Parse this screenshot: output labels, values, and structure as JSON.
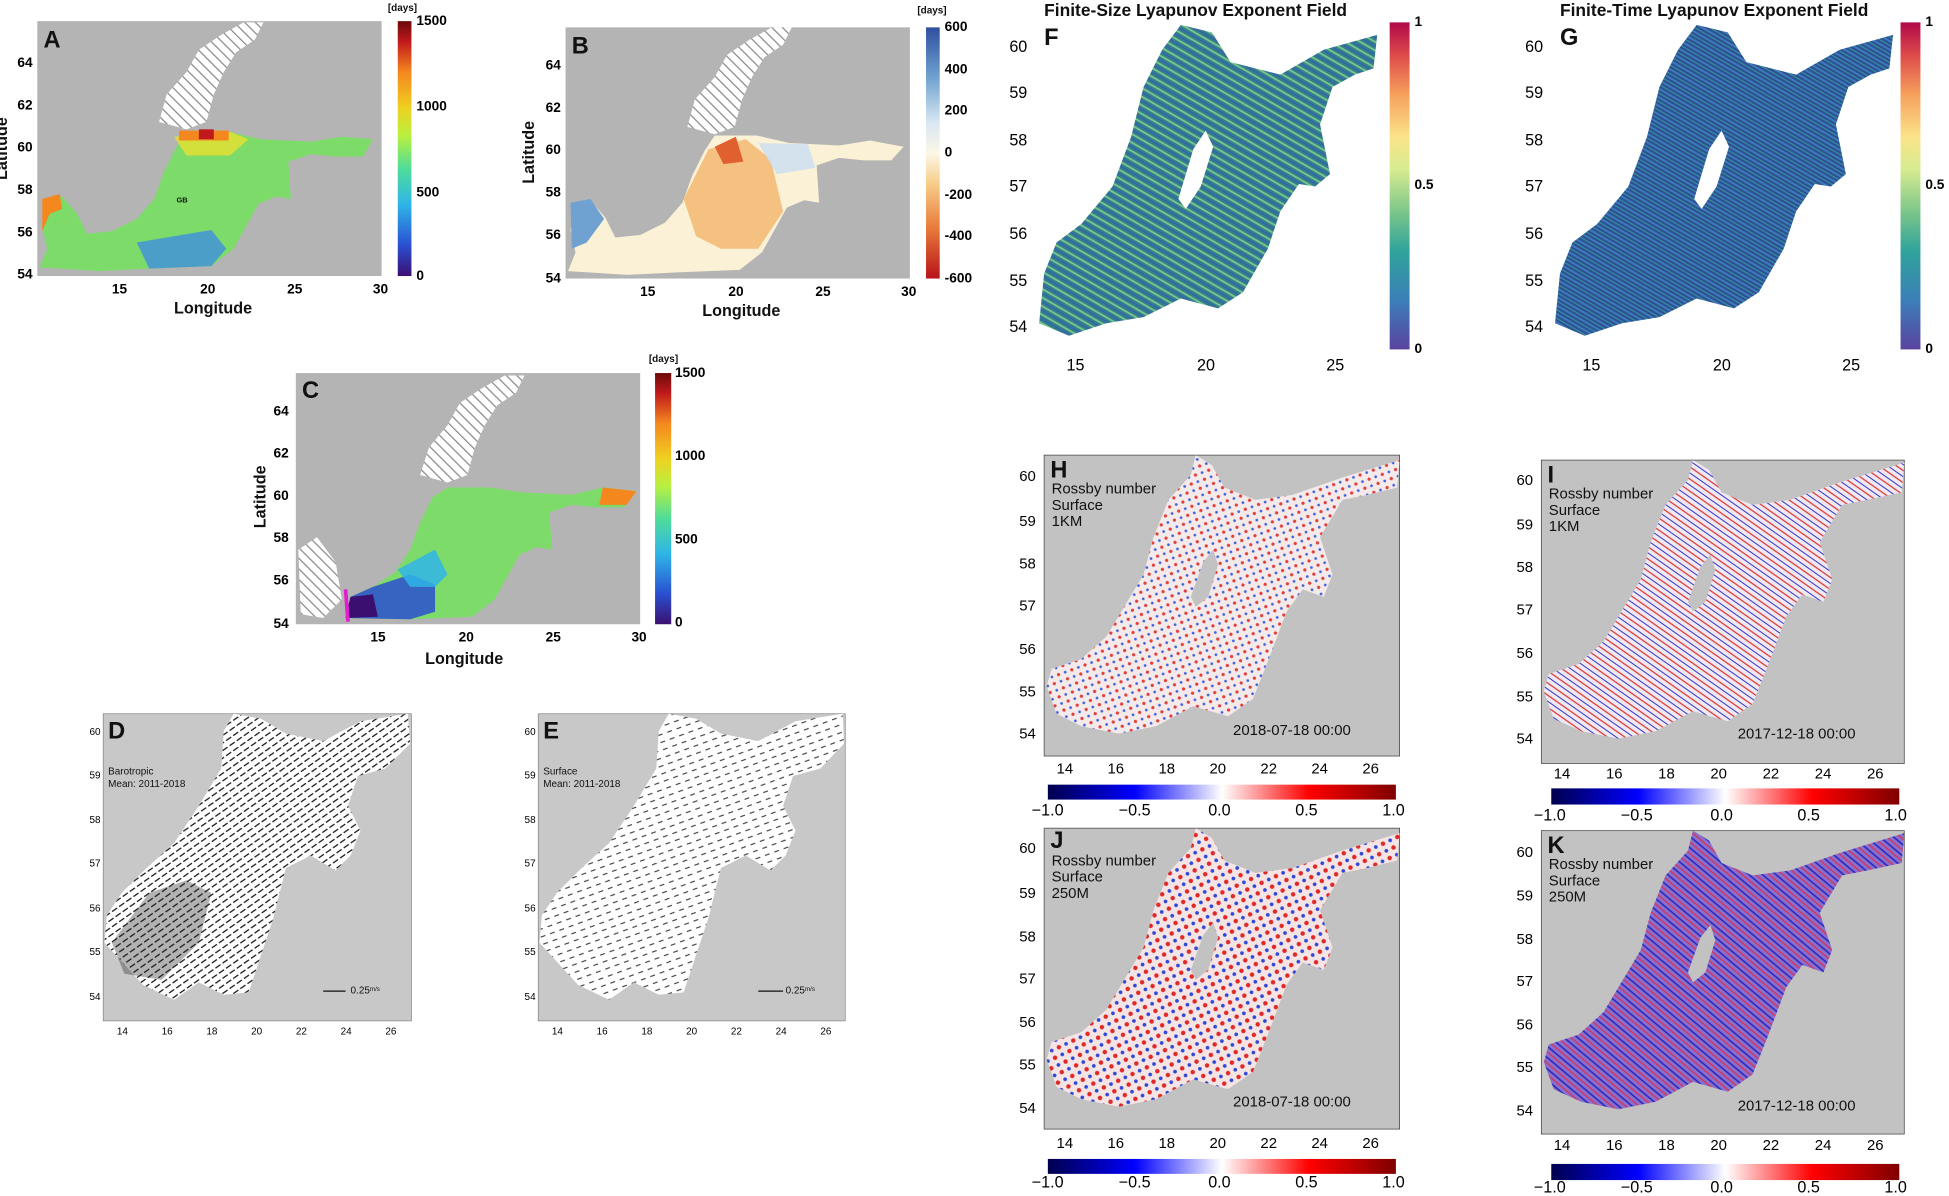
{
  "chart_data": [
    {
      "panel": "A",
      "type": "heatmap",
      "xlabel": "Longitude",
      "ylabel": "Latitude",
      "xticks": [
        "15",
        "20",
        "25",
        "30"
      ],
      "yticks": [
        "54",
        "56",
        "58",
        "60",
        "62",
        "64"
      ],
      "xlim": [
        10,
        30
      ],
      "ylim": [
        54,
        66
      ],
      "annotation": "GB",
      "colorbar": {
        "unit": "[days]",
        "ticks": [
          "1500",
          "1000",
          "500",
          "0"
        ],
        "range": [
          0,
          1500
        ]
      }
    },
    {
      "panel": "B",
      "type": "heatmap",
      "xlabel": "Longitude",
      "ylabel": "Latitude",
      "xticks": [
        "15",
        "20",
        "25",
        "30"
      ],
      "yticks": [
        "54",
        "56",
        "58",
        "60",
        "62",
        "64"
      ],
      "xlim": [
        10,
        30
      ],
      "ylim": [
        54,
        66
      ],
      "colorbar": {
        "unit": "[days]",
        "ticks": [
          "600",
          "400",
          "200",
          "0",
          "-200",
          "-400",
          "-600"
        ],
        "range": [
          -600,
          600
        ]
      }
    },
    {
      "panel": "C",
      "type": "heatmap",
      "xlabel": "Longitude",
      "ylabel": "Latitude",
      "xticks": [
        "15",
        "20",
        "25",
        "30"
      ],
      "yticks": [
        "54",
        "56",
        "58",
        "60",
        "62",
        "64"
      ],
      "xlim": [
        10,
        30
      ],
      "ylim": [
        54,
        66
      ],
      "colorbar": {
        "unit": "[days]",
        "ticks": [
          "1500",
          "1000",
          "500",
          "0"
        ],
        "range": [
          0,
          1500
        ]
      }
    },
    {
      "panel": "D",
      "type": "quiver",
      "xticks": [
        "14",
        "16",
        "18",
        "20",
        "22",
        "24",
        "26"
      ],
      "yticks": [
        "54",
        "55",
        "56",
        "57",
        "58",
        "59",
        "60"
      ],
      "xlim": [
        13,
        27
      ],
      "ylim": [
        53.5,
        60.5
      ],
      "text": [
        "Barotropic",
        "Mean: 2011-2018"
      ],
      "scale_label": "0.25",
      "scale_unit": "m/s"
    },
    {
      "panel": "E",
      "type": "quiver",
      "xticks": [
        "14",
        "16",
        "18",
        "20",
        "22",
        "24",
        "26"
      ],
      "yticks": [
        "54",
        "55",
        "56",
        "57",
        "58",
        "59",
        "60"
      ],
      "xlim": [
        13,
        27
      ],
      "ylim": [
        53.5,
        60.5
      ],
      "text": [
        "Surface",
        "Mean: 2011-2018"
      ],
      "scale_label": "0.25",
      "scale_unit": "m/s"
    },
    {
      "panel": "F",
      "type": "heatmap",
      "title": "Finite-Size Lyapunov Exponent Field",
      "xticks": [
        "15",
        "20",
        "25"
      ],
      "yticks": [
        "54",
        "55",
        "56",
        "57",
        "58",
        "59",
        "60"
      ],
      "xlim": [
        13.5,
        26.5
      ],
      "ylim": [
        53.6,
        60.6
      ],
      "colorbar": {
        "ticks": [
          "1",
          "0.5",
          "0"
        ],
        "range": [
          0,
          1
        ]
      }
    },
    {
      "panel": "G",
      "type": "heatmap",
      "title": "Finite-Time Lyapunov Exponent Field",
      "xticks": [
        "15",
        "20",
        "25"
      ],
      "yticks": [
        "54",
        "55",
        "56",
        "57",
        "58",
        "59",
        "60"
      ],
      "xlim": [
        13.5,
        26.5
      ],
      "ylim": [
        53.6,
        60.6
      ],
      "colorbar": {
        "ticks": [
          "1",
          "0.5",
          "0"
        ],
        "range": [
          0,
          1
        ]
      }
    },
    {
      "panel": "H",
      "type": "heatmap",
      "text": [
        "Rossby number",
        "Surface",
        "1KM"
      ],
      "date": "2018-07-18 00:00",
      "xticks": [
        "14",
        "16",
        "18",
        "20",
        "22",
        "24",
        "26"
      ],
      "yticks": [
        "54",
        "55",
        "56",
        "57",
        "58",
        "59",
        "60"
      ],
      "xlim": [
        13,
        27
      ],
      "ylim": [
        53.6,
        60.4
      ],
      "colorbar": {
        "ticks": [
          "−1.0",
          "−0.5",
          "0.0",
          "0.5",
          "1.0"
        ],
        "range": [
          -1,
          1
        ]
      }
    },
    {
      "panel": "I",
      "type": "heatmap",
      "text": [
        "Rossby number",
        "Surface",
        "1KM"
      ],
      "date": "2017-12-18 00:00",
      "xticks": [
        "14",
        "16",
        "18",
        "20",
        "22",
        "24",
        "26"
      ],
      "yticks": [
        "54",
        "55",
        "56",
        "57",
        "58",
        "59",
        "60"
      ],
      "xlim": [
        13,
        27
      ],
      "ylim": [
        53.6,
        60.4
      ],
      "colorbar": {
        "ticks": [
          "−1.0",
          "−0.5",
          "0.0",
          "0.5",
          "1.0"
        ],
        "range": [
          -1,
          1
        ]
      }
    },
    {
      "panel": "J",
      "type": "heatmap",
      "text": [
        "Rossby number",
        "Surface",
        "250M"
      ],
      "date": "2018-07-18 00:00",
      "xticks": [
        "14",
        "16",
        "18",
        "20",
        "22",
        "24",
        "26"
      ],
      "yticks": [
        "54",
        "55",
        "56",
        "57",
        "58",
        "59",
        "60"
      ],
      "xlim": [
        13,
        27
      ],
      "ylim": [
        53.6,
        60.4
      ],
      "colorbar": {
        "ticks": [
          "−1.0",
          "−0.5",
          "0.0",
          "0.5",
          "1.0"
        ],
        "range": [
          -1,
          1
        ]
      }
    },
    {
      "panel": "K",
      "type": "heatmap",
      "text": [
        "Rossby number",
        "Surface",
        "250M"
      ],
      "date": "2017-12-18 00:00",
      "xticks": [
        "14",
        "16",
        "18",
        "20",
        "22",
        "24",
        "26"
      ],
      "yticks": [
        "54",
        "55",
        "56",
        "57",
        "58",
        "59",
        "60"
      ],
      "xlim": [
        13,
        27
      ],
      "ylim": [
        53.6,
        60.4
      ],
      "colorbar": {
        "ticks": [
          "−1.0",
          "−0.5",
          "0.0",
          "0.5",
          "1.0"
        ],
        "range": [
          -1,
          1
        ]
      }
    }
  ],
  "colors": {
    "map_background": "#b4b4b4",
    "rossby_background": "#c2c2c2",
    "jet": [
      "#3b0f70",
      "#2a4fd0",
      "#2fb5e8",
      "#4fdc9a",
      "#b8f040",
      "#f0d020",
      "#f5871f",
      "#c0191c",
      "#6b0a0a"
    ],
    "diverging": [
      "#2f4fa0",
      "#6fa2d0",
      "#d9e8f2",
      "#fbf7e8",
      "#f7cf8a",
      "#e87a3a",
      "#b8121a"
    ],
    "spectral": [
      "#5a43a0",
      "#3b7fb8",
      "#2fa39b",
      "#7cc68a",
      "#d6ec90",
      "#fbe48a",
      "#f6a05c",
      "#de4a4a",
      "#b0094a"
    ],
    "seismic": [
      "#00004d",
      "#0000ff",
      "#ffffff",
      "#ff0000",
      "#7f0000"
    ]
  }
}
